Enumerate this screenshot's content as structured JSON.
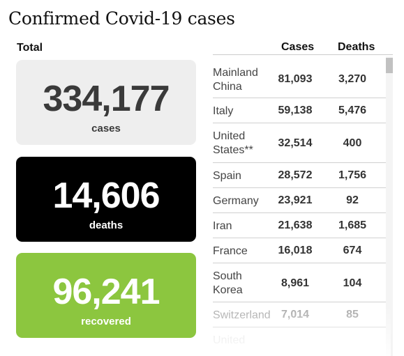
{
  "title": "Confirmed Covid-19 cases",
  "total_label": "Total",
  "totals": {
    "cases": {
      "value": "334,177",
      "label": "cases"
    },
    "deaths": {
      "value": "14,606",
      "label": "deaths"
    },
    "recovered": {
      "value": "96,241",
      "label": "recovered"
    }
  },
  "table": {
    "headers": {
      "cases": "Cases",
      "deaths": "Deaths"
    },
    "rows": [
      {
        "country": "Mainland China",
        "cases": "81,093",
        "deaths": "3,270"
      },
      {
        "country": "Italy",
        "cases": "59,138",
        "deaths": "5,476"
      },
      {
        "country": "United States**",
        "cases": "32,514",
        "deaths": "400"
      },
      {
        "country": "Spain",
        "cases": "28,572",
        "deaths": "1,756"
      },
      {
        "country": "Germany",
        "cases": "23,921",
        "deaths": "92"
      },
      {
        "country": "Iran",
        "cases": "21,638",
        "deaths": "1,685"
      },
      {
        "country": "France",
        "cases": "16,018",
        "deaths": "674"
      },
      {
        "country": "South Korea",
        "cases": "8,961",
        "deaths": "104"
      },
      {
        "country": "Switzerland",
        "cases": "7,014",
        "deaths": "85"
      },
      {
        "country": "United",
        "cases": "",
        "deaths": ""
      }
    ]
  },
  "colors": {
    "recovered": "#8cc63f",
    "deaths_bg": "#000000",
    "cases_bg": "#eeeeee"
  }
}
